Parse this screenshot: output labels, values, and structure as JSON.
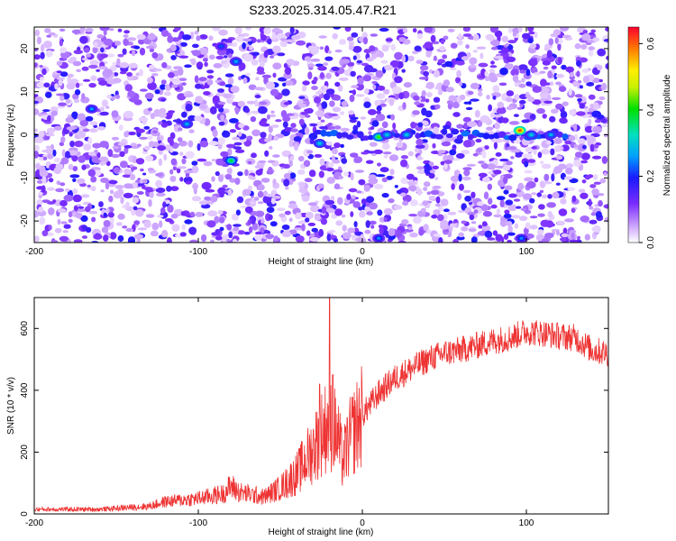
{
  "chart_data": [
    {
      "type": "heatmap",
      "title": "S233.2025.314.05.47.R21",
      "xlabel": "Height of straight line (km)",
      "ylabel": "Frequency (Hz)",
      "xlim": [
        -200,
        150
      ],
      "ylim": [
        -25,
        25
      ],
      "xticks": [
        -200,
        -100,
        0,
        100
      ],
      "yticks": [
        -20,
        -10,
        0,
        10,
        20
      ],
      "colorbar": {
        "label": "Normalized spectral amplitude",
        "range": [
          0,
          0.65
        ],
        "ticks": [
          "0.0",
          "0.2",
          "0.4",
          "0.6"
        ]
      },
      "features": [
        {
          "x": 10,
          "y": -0.5,
          "amp": 0.42
        },
        {
          "x": 96,
          "y": 1,
          "amp": 0.6
        },
        {
          "x": -80,
          "y": -6,
          "amp": 0.38
        },
        {
          "x": 15,
          "y": 0,
          "amp": 0.3
        },
        {
          "x": 27,
          "y": 0,
          "amp": 0.3
        },
        {
          "x": 103,
          "y": 0,
          "amp": 0.3
        },
        {
          "x": 115,
          "y": 0,
          "amp": 0.28
        },
        {
          "x": -26,
          "y": -2,
          "amp": 0.3
        },
        {
          "x": -107,
          "y": 2.5,
          "amp": 0.28
        },
        {
          "x": -77,
          "y": 17,
          "amp": 0.27
        },
        {
          "x": -165,
          "y": 6,
          "amp": 0.26
        },
        {
          "x": 97,
          "y": -24,
          "amp": 0.25
        },
        {
          "x": 10,
          "y": -24,
          "amp": 0.25
        },
        {
          "x": -86,
          "y": 20.5,
          "amp": 0.22
        }
      ]
    },
    {
      "type": "line",
      "xlabel": "Height of straight line (km)",
      "ylabel": "SNR (10 * v/v)",
      "xlim": [
        -200,
        150
      ],
      "ylim": [
        0,
        700
      ],
      "xticks": [
        -200,
        -100,
        0,
        100
      ],
      "yticks": [
        0,
        200,
        400,
        600
      ],
      "color": "#ee3333",
      "trend": [
        [
          -200,
          15
        ],
        [
          -160,
          15
        ],
        [
          -130,
          25
        ],
        [
          -120,
          40
        ],
        [
          -100,
          50
        ],
        [
          -85,
          65
        ],
        [
          -80,
          90
        ],
        [
          -75,
          70
        ],
        [
          -60,
          55
        ],
        [
          -50,
          85
        ],
        [
          -40,
          130
        ],
        [
          -30,
          210
        ],
        [
          -25,
          260
        ],
        [
          -20,
          300
        ],
        [
          -15,
          250
        ],
        [
          -12,
          170
        ],
        [
          -8,
          240
        ],
        [
          0,
          320
        ],
        [
          10,
          390
        ],
        [
          20,
          440
        ],
        [
          30,
          470
        ],
        [
          40,
          500
        ],
        [
          50,
          520
        ],
        [
          60,
          530
        ],
        [
          70,
          545
        ],
        [
          80,
          560
        ],
        [
          90,
          570
        ],
        [
          100,
          590
        ],
        [
          110,
          585
        ],
        [
          120,
          575
        ],
        [
          130,
          570
        ],
        [
          140,
          530
        ],
        [
          150,
          520
        ]
      ],
      "spikes": [
        {
          "x": -20,
          "y": 700
        },
        {
          "x": -18,
          "y": 450
        },
        {
          "x": -26,
          "y": 420
        }
      ]
    }
  ]
}
